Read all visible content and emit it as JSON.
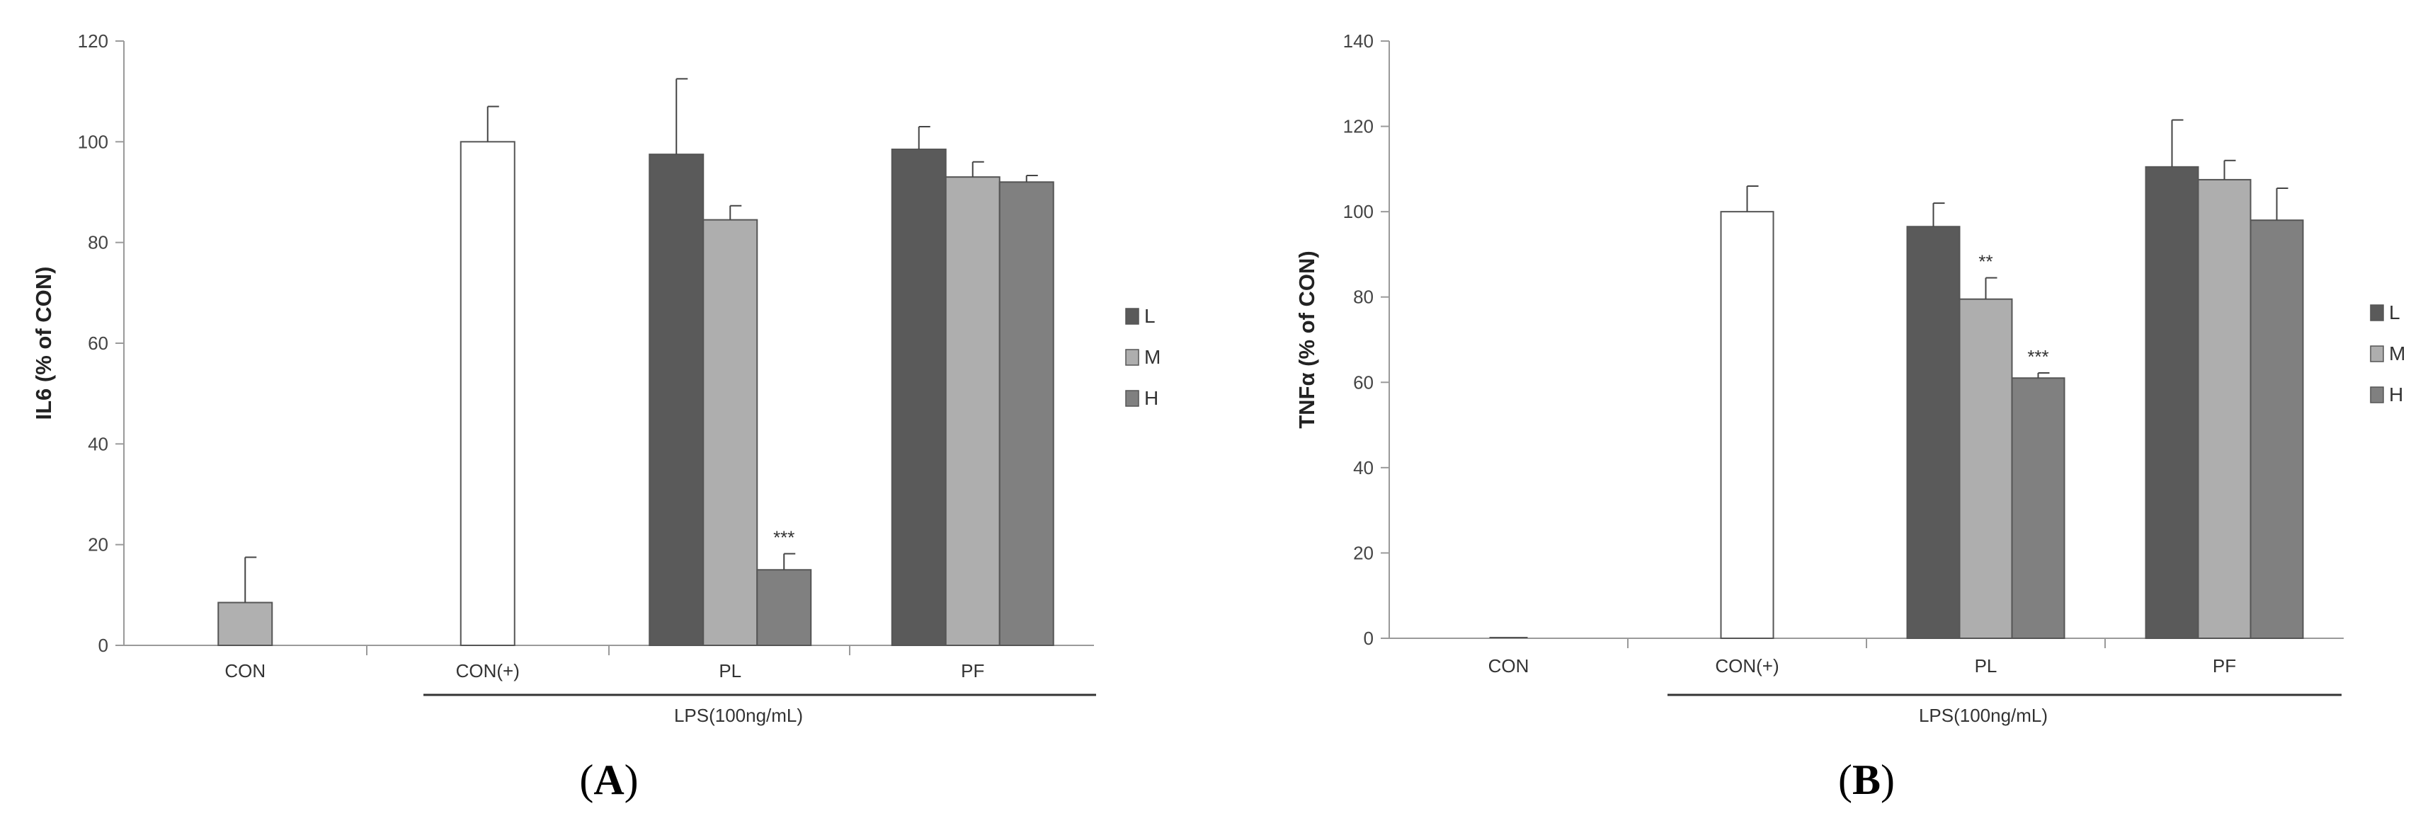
{
  "colors": {
    "L": "#5a5a5a",
    "M": "#aeaeae",
    "H": "#808080",
    "CON": "#b0b0b0",
    "CON_plus": "#ffffff",
    "axis": "#9a9a9a",
    "edge": "#555555"
  },
  "chart_data": [
    {
      "type": "bar",
      "panel_label": "(A)",
      "ylabel": "IL6 (% of CON)",
      "ylim": [
        0,
        120
      ],
      "yticks": [
        "0",
        "20",
        "40",
        "60",
        "80",
        "100",
        "120"
      ],
      "categories": [
        "CON",
        "CON(+)",
        "PL",
        "PF"
      ],
      "group_label": "LPS(100ng/mL)",
      "legend": [
        "L",
        "M",
        "H"
      ],
      "legend_position": "right",
      "bars": [
        {
          "category": "CON",
          "series": null,
          "value": 8.5,
          "error": 9
        },
        {
          "category": "CON(+)",
          "series": null,
          "value": 100,
          "error": 7
        },
        {
          "category": "PL",
          "series": "L",
          "value": 97.5,
          "error": 15
        },
        {
          "category": "PL",
          "series": "M",
          "value": 84.5,
          "error": 2.8
        },
        {
          "category": "PL",
          "series": "H",
          "value": 15,
          "error": 3.2,
          "annotation": "***"
        },
        {
          "category": "PF",
          "series": "L",
          "value": 98.5,
          "error": 4.5
        },
        {
          "category": "PF",
          "series": "M",
          "value": 93,
          "error": 3
        },
        {
          "category": "PF",
          "series": "H",
          "value": 92,
          "error": 1.3
        }
      ]
    },
    {
      "type": "bar",
      "panel_label": "(B)",
      "ylabel": "TNFα (% of CON)",
      "ylim": [
        0,
        140
      ],
      "yticks": [
        "0",
        "20",
        "40",
        "60",
        "80",
        "100",
        "120",
        "140"
      ],
      "categories": [
        "CON",
        "CON(+)",
        "PL",
        "PF"
      ],
      "group_label": "LPS(100ng/mL)",
      "legend": [
        "L",
        "M",
        "H"
      ],
      "legend_position": "right",
      "bars": [
        {
          "category": "CON",
          "series": null,
          "value": 0,
          "error": 0
        },
        {
          "category": "CON(+)",
          "series": null,
          "value": 100,
          "error": 6
        },
        {
          "category": "PL",
          "series": "L",
          "value": 96.5,
          "error": 5.5
        },
        {
          "category": "PL",
          "series": "M",
          "value": 79.5,
          "error": 5,
          "annotation": "**"
        },
        {
          "category": "PL",
          "series": "H",
          "value": 61,
          "error": 1.2,
          "annotation": "***"
        },
        {
          "category": "PF",
          "series": "L",
          "value": 110.5,
          "error": 11
        },
        {
          "category": "PF",
          "series": "M",
          "value": 107.5,
          "error": 4.5
        },
        {
          "category": "PF",
          "series": "H",
          "value": 98,
          "error": 7.5
        }
      ]
    }
  ]
}
